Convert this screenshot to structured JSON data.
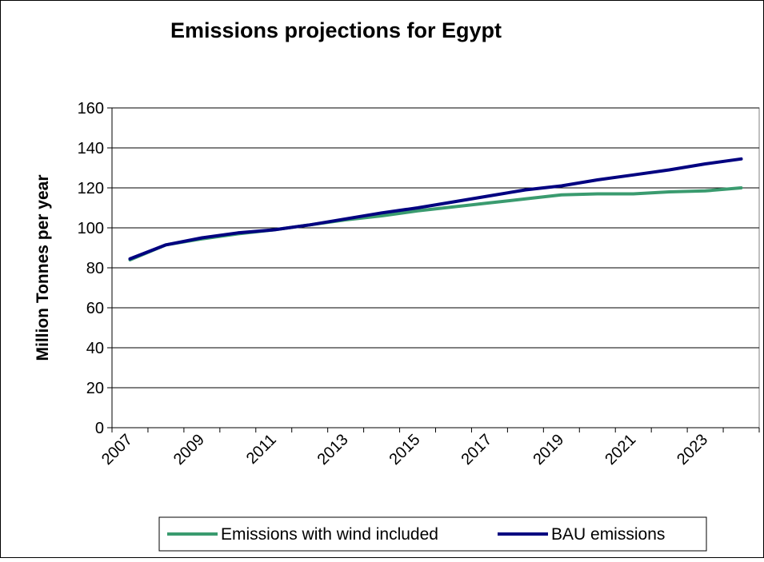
{
  "chart_data": {
    "type": "line",
    "title": "Emissions projections for Egypt",
    "xlabel": "",
    "ylabel": "Million Tonnes per year",
    "ylim": [
      0,
      160
    ],
    "yticks": [
      0,
      20,
      40,
      60,
      80,
      100,
      120,
      140,
      160
    ],
    "x": [
      2007,
      2008,
      2009,
      2010,
      2011,
      2012,
      2013,
      2014,
      2015,
      2016,
      2017,
      2018,
      2019,
      2020,
      2021,
      2022,
      2023,
      2024
    ],
    "xtick_labels": [
      "2007",
      "2009",
      "2011",
      "2013",
      "2015",
      "2017",
      "2019",
      "2021",
      "2023"
    ],
    "grid": "horizontal",
    "legend_position": "bottom",
    "series": [
      {
        "name": "Emissions with wind included",
        "color": "#3a9b6f",
        "values": [
          84,
          91.5,
          94.5,
          97,
          99,
          101.5,
          104,
          106,
          108.5,
          110.5,
          112.5,
          114.5,
          116.5,
          117,
          117,
          118,
          118.5,
          120
        ]
      },
      {
        "name": "BAU emissions",
        "color": "#000080",
        "values": [
          84.5,
          91.5,
          95,
          97.5,
          99,
          101.5,
          104.5,
          107.5,
          110,
          113,
          116,
          119,
          121,
          124,
          126.5,
          129,
          132,
          134.5
        ]
      }
    ]
  }
}
